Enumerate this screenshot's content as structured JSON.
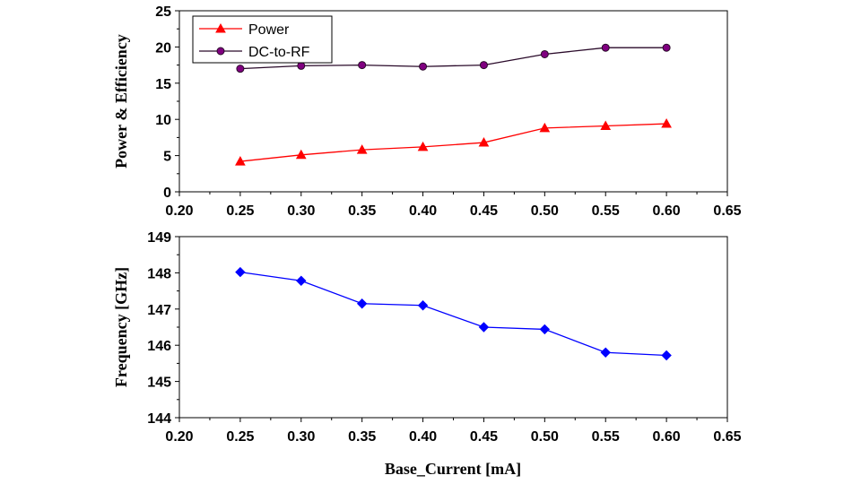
{
  "chart_data": [
    {
      "type": "line",
      "xlabel": "",
      "ylabel": "Power & Efficiency",
      "xlim": [
        0.2,
        0.65
      ],
      "ylim": [
        0,
        25
      ],
      "xticks": [
        "0.20",
        "0.25",
        "0.30",
        "0.35",
        "0.40",
        "0.45",
        "0.50",
        "0.55",
        "0.60",
        "0.65"
      ],
      "yticks": [
        "0",
        "5",
        "10",
        "15",
        "20",
        "25"
      ],
      "grid": false,
      "legend_position": "top-left",
      "series": [
        {
          "name": "Power",
          "color": "#ff0000",
          "marker": "triangle",
          "x": [
            0.25,
            0.3,
            0.35,
            0.4,
            0.45,
            0.5,
            0.55,
            0.6
          ],
          "y": [
            4.2,
            5.1,
            5.8,
            6.2,
            6.8,
            8.8,
            9.1,
            9.4
          ]
        },
        {
          "name": "DC-to-RF",
          "color": "#800080",
          "line_color": "#2a0a2a",
          "marker": "circle",
          "x": [
            0.25,
            0.3,
            0.35,
            0.4,
            0.45,
            0.5,
            0.55,
            0.6
          ],
          "y": [
            17.0,
            17.4,
            17.5,
            17.3,
            17.5,
            19.0,
            19.9,
            19.9
          ]
        }
      ]
    },
    {
      "type": "line",
      "xlabel": "Base_Current [mA]",
      "ylabel": "Frequency [GHz]",
      "xlim": [
        0.2,
        0.65
      ],
      "ylim": [
        144,
        149
      ],
      "xticks": [
        "0.20",
        "0.25",
        "0.30",
        "0.35",
        "0.40",
        "0.45",
        "0.50",
        "0.55",
        "0.60",
        "0.65"
      ],
      "yticks": [
        "144",
        "145",
        "146",
        "147",
        "148",
        "149"
      ],
      "grid": false,
      "series": [
        {
          "color": "#0000ff",
          "marker": "diamond",
          "x": [
            0.25,
            0.3,
            0.35,
            0.4,
            0.45,
            0.5,
            0.55,
            0.6
          ],
          "y": [
            148.02,
            147.78,
            147.15,
            147.1,
            146.5,
            146.44,
            145.8,
            145.72
          ]
        }
      ]
    }
  ]
}
